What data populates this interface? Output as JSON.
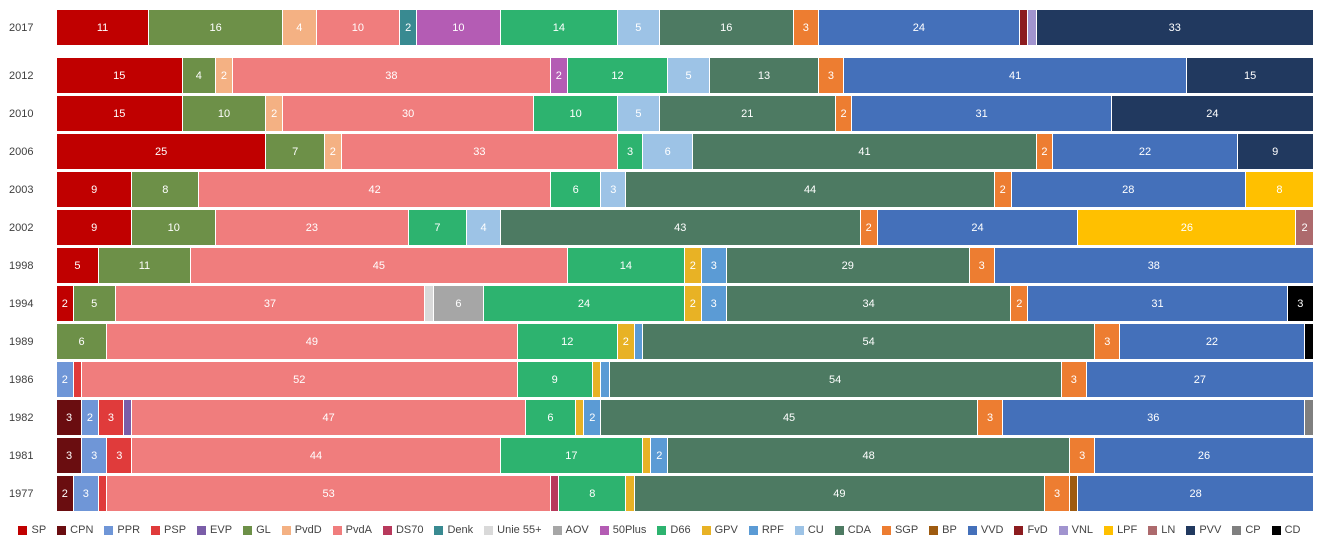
{
  "chart_data": {
    "type": "bar",
    "variant": "stacked-horizontal",
    "title": "",
    "xlabel": "",
    "ylabel": "",
    "grid": false,
    "legend_position": "bottom",
    "total_seats": 150,
    "categories": [
      "2017",
      "2012",
      "2010",
      "2006",
      "2003",
      "2002",
      "1998",
      "1994",
      "1989",
      "1986",
      "1982",
      "1981",
      "1977"
    ],
    "legend": [
      "SP",
      "CPN",
      "PPR",
      "PSP",
      "EVP",
      "GL",
      "PvdD",
      "PvdA",
      "DS70",
      "Denk",
      "Unie 55+",
      "AOV",
      "50Plus",
      "D66",
      "GPV",
      "RPF",
      "CU",
      "CDA",
      "SGP",
      "BP",
      "VVD",
      "FvD",
      "VNL",
      "LPF",
      "LN",
      "PVV",
      "CP",
      "CD"
    ],
    "colors": {
      "SP": "#c00000",
      "CPN": "#6a0d10",
      "PPR": "#6f96d7",
      "PSP": "#e03b3b",
      "EVP": "#7a5da8",
      "GL": "#6d9048",
      "PvdD": "#f4b183",
      "PvdA": "#f07d7d",
      "DS70": "#b8395c",
      "Denk": "#398a91",
      "Unie 55+": "#d9d9d9",
      "AOV": "#a6a6a6",
      "50Plus": "#b45cb4",
      "D66": "#2db36f",
      "GPV": "#e8b225",
      "RPF": "#5b9bd5",
      "CU": "#9dc3e6",
      "CDA": "#4d7a62",
      "SGP": "#ed7d31",
      "BP": "#9e5b10",
      "VVD": "#4470ba",
      "FvD": "#8c1c1f",
      "VNL": "#a194cf",
      "LPF": "#ffc000",
      "LN": "#ad6a6d",
      "PVV": "#21395f",
      "CP": "#7f7f7f",
      "CD": "#000000"
    },
    "rows": [
      {
        "year": "2017",
        "segments": [
          {
            "party": "SP",
            "seats": 11
          },
          {
            "party": "GL",
            "seats": 16
          },
          {
            "party": "PvdD",
            "seats": 4
          },
          {
            "party": "PvdA",
            "seats": 10
          },
          {
            "party": "Denk",
            "seats": 2
          },
          {
            "party": "50Plus",
            "seats": 10
          },
          {
            "party": "D66",
            "seats": 14
          },
          {
            "party": "CU",
            "seats": 5
          },
          {
            "party": "CDA",
            "seats": 16
          },
          {
            "party": "SGP",
            "seats": 3
          },
          {
            "party": "VVD",
            "seats": 24
          },
          {
            "party": "FvD",
            "seats": 1
          },
          {
            "party": "VNL",
            "seats": 1
          },
          {
            "party": "PVV",
            "seats": 33
          }
        ]
      },
      {
        "year": "2012",
        "segments": [
          {
            "party": "SP",
            "seats": 15
          },
          {
            "party": "GL",
            "seats": 4
          },
          {
            "party": "PvdD",
            "seats": 2
          },
          {
            "party": "PvdA",
            "seats": 38
          },
          {
            "party": "50Plus",
            "seats": 2
          },
          {
            "party": "D66",
            "seats": 12
          },
          {
            "party": "CU",
            "seats": 5
          },
          {
            "party": "CDA",
            "seats": 13
          },
          {
            "party": "SGP",
            "seats": 3
          },
          {
            "party": "VVD",
            "seats": 41
          },
          {
            "party": "PVV",
            "seats": 15
          }
        ]
      },
      {
        "year": "2010",
        "segments": [
          {
            "party": "SP",
            "seats": 15
          },
          {
            "party": "GL",
            "seats": 10
          },
          {
            "party": "PvdD",
            "seats": 2
          },
          {
            "party": "PvdA",
            "seats": 30
          },
          {
            "party": "D66",
            "seats": 10
          },
          {
            "party": "CU",
            "seats": 5
          },
          {
            "party": "CDA",
            "seats": 21
          },
          {
            "party": "SGP",
            "seats": 2
          },
          {
            "party": "VVD",
            "seats": 31
          },
          {
            "party": "PVV",
            "seats": 24
          }
        ]
      },
      {
        "year": "2006",
        "segments": [
          {
            "party": "SP",
            "seats": 25
          },
          {
            "party": "GL",
            "seats": 7
          },
          {
            "party": "PvdD",
            "seats": 2
          },
          {
            "party": "PvdA",
            "seats": 33
          },
          {
            "party": "D66",
            "seats": 3
          },
          {
            "party": "CU",
            "seats": 6
          },
          {
            "party": "CDA",
            "seats": 41
          },
          {
            "party": "SGP",
            "seats": 2
          },
          {
            "party": "VVD",
            "seats": 22
          },
          {
            "party": "PVV",
            "seats": 9
          }
        ]
      },
      {
        "year": "2003",
        "segments": [
          {
            "party": "SP",
            "seats": 9
          },
          {
            "party": "GL",
            "seats": 8
          },
          {
            "party": "PvdA",
            "seats": 42
          },
          {
            "party": "D66",
            "seats": 6
          },
          {
            "party": "CU",
            "seats": 3
          },
          {
            "party": "CDA",
            "seats": 44
          },
          {
            "party": "SGP",
            "seats": 2
          },
          {
            "party": "VVD",
            "seats": 28
          },
          {
            "party": "LPF",
            "seats": 8
          }
        ]
      },
      {
        "year": "2002",
        "segments": [
          {
            "party": "SP",
            "seats": 9
          },
          {
            "party": "GL",
            "seats": 10
          },
          {
            "party": "PvdA",
            "seats": 23
          },
          {
            "party": "D66",
            "seats": 7
          },
          {
            "party": "CU",
            "seats": 4
          },
          {
            "party": "CDA",
            "seats": 43
          },
          {
            "party": "SGP",
            "seats": 2
          },
          {
            "party": "VVD",
            "seats": 24
          },
          {
            "party": "LPF",
            "seats": 26
          },
          {
            "party": "LN",
            "seats": 2
          }
        ]
      },
      {
        "year": "1998",
        "segments": [
          {
            "party": "SP",
            "seats": 5
          },
          {
            "party": "GL",
            "seats": 11
          },
          {
            "party": "PvdA",
            "seats": 45
          },
          {
            "party": "D66",
            "seats": 14
          },
          {
            "party": "GPV",
            "seats": 2
          },
          {
            "party": "RPF",
            "seats": 3
          },
          {
            "party": "CDA",
            "seats": 29
          },
          {
            "party": "SGP",
            "seats": 3
          },
          {
            "party": "VVD",
            "seats": 38
          }
        ]
      },
      {
        "year": "1994",
        "segments": [
          {
            "party": "SP",
            "seats": 2
          },
          {
            "party": "GL",
            "seats": 5
          },
          {
            "party": "PvdA",
            "seats": 37
          },
          {
            "party": "Unie 55+",
            "seats": 1
          },
          {
            "party": "AOV",
            "seats": 6
          },
          {
            "party": "D66",
            "seats": 24
          },
          {
            "party": "GPV",
            "seats": 2
          },
          {
            "party": "RPF",
            "seats": 3
          },
          {
            "party": "CDA",
            "seats": 34
          },
          {
            "party": "SGP",
            "seats": 2
          },
          {
            "party": "VVD",
            "seats": 31
          },
          {
            "party": "CD",
            "seats": 3
          }
        ]
      },
      {
        "year": "1989",
        "segments": [
          {
            "party": "GL",
            "seats": 6
          },
          {
            "party": "PvdA",
            "seats": 49
          },
          {
            "party": "D66",
            "seats": 12
          },
          {
            "party": "GPV",
            "seats": 2
          },
          {
            "party": "RPF",
            "seats": 1
          },
          {
            "party": "CDA",
            "seats": 54
          },
          {
            "party": "SGP",
            "seats": 3
          },
          {
            "party": "VVD",
            "seats": 22
          },
          {
            "party": "CD",
            "seats": 1
          }
        ]
      },
      {
        "year": "1986",
        "segments": [
          {
            "party": "PPR",
            "seats": 2
          },
          {
            "party": "PSP",
            "seats": 1
          },
          {
            "party": "PvdA",
            "seats": 52
          },
          {
            "party": "D66",
            "seats": 9
          },
          {
            "party": "GPV",
            "seats": 1
          },
          {
            "party": "RPF",
            "seats": 1
          },
          {
            "party": "CDA",
            "seats": 54
          },
          {
            "party": "SGP",
            "seats": 3
          },
          {
            "party": "VVD",
            "seats": 27
          }
        ]
      },
      {
        "year": "1982",
        "segments": [
          {
            "party": "CPN",
            "seats": 3
          },
          {
            "party": "PPR",
            "seats": 2
          },
          {
            "party": "PSP",
            "seats": 3
          },
          {
            "party": "EVP",
            "seats": 1
          },
          {
            "party": "PvdA",
            "seats": 47
          },
          {
            "party": "D66",
            "seats": 6
          },
          {
            "party": "GPV",
            "seats": 1
          },
          {
            "party": "RPF",
            "seats": 2
          },
          {
            "party": "CDA",
            "seats": 45
          },
          {
            "party": "SGP",
            "seats": 3
          },
          {
            "party": "VVD",
            "seats": 36
          },
          {
            "party": "CP",
            "seats": 1
          }
        ]
      },
      {
        "year": "1981",
        "segments": [
          {
            "party": "CPN",
            "seats": 3
          },
          {
            "party": "PPR",
            "seats": 3
          },
          {
            "party": "PSP",
            "seats": 3
          },
          {
            "party": "PvdA",
            "seats": 44
          },
          {
            "party": "D66",
            "seats": 17
          },
          {
            "party": "GPV",
            "seats": 1
          },
          {
            "party": "RPF",
            "seats": 2
          },
          {
            "party": "CDA",
            "seats": 48
          },
          {
            "party": "SGP",
            "seats": 3
          },
          {
            "party": "VVD",
            "seats": 26
          }
        ]
      },
      {
        "year": "1977",
        "segments": [
          {
            "party": "CPN",
            "seats": 2
          },
          {
            "party": "PPR",
            "seats": 3
          },
          {
            "party": "PSP",
            "seats": 1
          },
          {
            "party": "PvdA",
            "seats": 53
          },
          {
            "party": "DS70",
            "seats": 1
          },
          {
            "party": "D66",
            "seats": 8
          },
          {
            "party": "GPV",
            "seats": 1
          },
          {
            "party": "CDA",
            "seats": 49
          },
          {
            "party": "SGP",
            "seats": 3
          },
          {
            "party": "BP",
            "seats": 1
          },
          {
            "party": "VVD",
            "seats": 28
          }
        ]
      }
    ]
  }
}
